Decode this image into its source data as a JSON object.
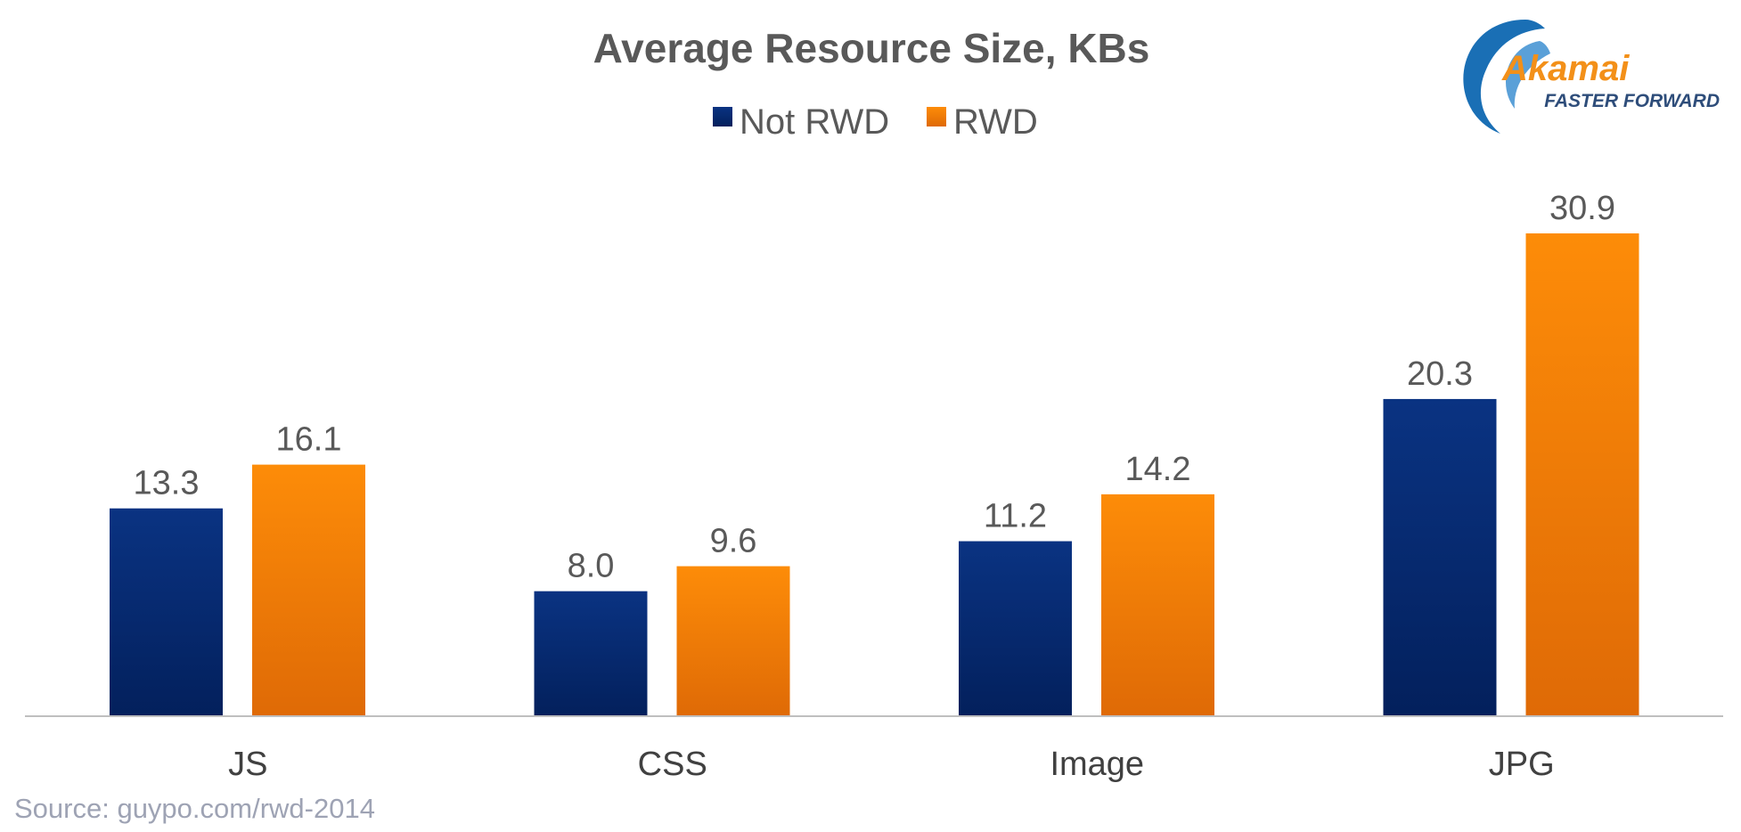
{
  "chart_data": {
    "type": "bar",
    "title": "Average Resource Size, KBs",
    "categories": [
      "JS",
      "CSS",
      "Image",
      "JPG"
    ],
    "series": [
      {
        "name": "Not RWD",
        "values": [
          13.3,
          8.0,
          11.2,
          20.3
        ],
        "color": "#0a3382"
      },
      {
        "name": "RWD",
        "values": [
          16.1,
          9.6,
          14.2,
          30.9
        ],
        "color": "#f48a0c"
      }
    ],
    "value_labels": [
      [
        "13.3",
        "8.0",
        "11.2",
        "20.3"
      ],
      [
        "16.1",
        "9.6",
        "14.2",
        "30.9"
      ]
    ],
    "ylim": [
      0,
      30.9
    ],
    "grid": false,
    "legend": "top-center",
    "source": "Source: guypo.com/rwd-2014"
  },
  "logo": {
    "name": "Akamai",
    "tagline": "FASTER FORWARD"
  },
  "colors": {
    "not_rwd_top": "#0a3382",
    "not_rwd_bottom": "#03205c",
    "rwd_top": "#fd8c08",
    "rwd_bottom": "#df6a06",
    "baseline": "#bfbfbf",
    "logo_blue": "#1a6fb5",
    "logo_orange": "#f39019"
  }
}
